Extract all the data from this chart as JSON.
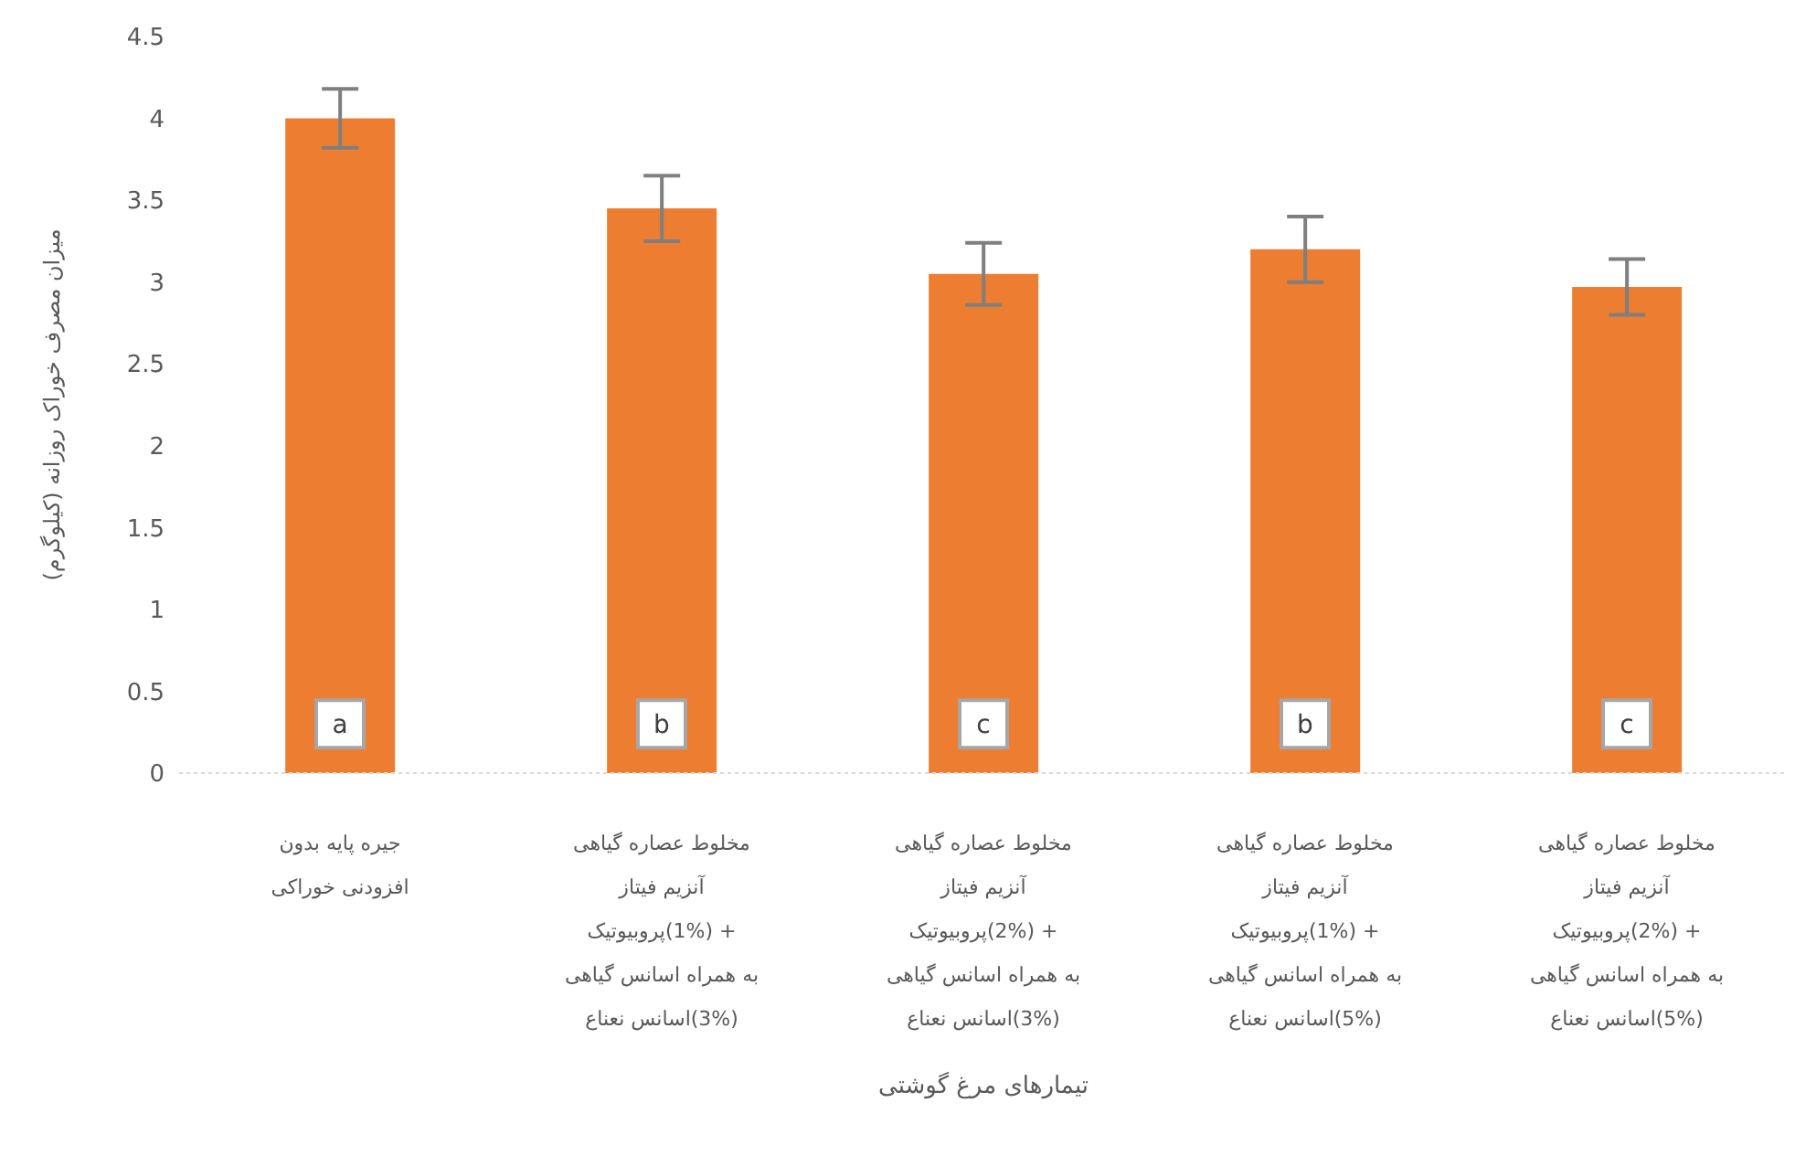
{
  "chart_data": {
    "type": "bar",
    "ylabel": "میزان مصرف خوراک روزانه (کیلوگرم)",
    "xlabel": "تیمارهای مرغ گوشتی",
    "categories": [
      "جیره پایه بدون\nافزودنی خوراکی",
      "مخلوط عصاره گیاهی\nآنزیم فیتاز\n+ (1%)پروبیوتیک\nبه همراه اسانس گیاهی\n(3%)اسانس نعناع",
      "مخلوط عصاره گیاهی\nآنزیم فیتاز\n+ (2%)پروبیوتیک\nبه همراه اسانس گیاهی\n(3%)اسانس نعناع",
      "مخلوط عصاره گیاهی\nآنزیم فیتاز\n+ (1%)پروبیوتیک\nبه همراه اسانس گیاهی\n(5%)اسانس نعناع",
      "مخلوط عصاره گیاهی\nآنزیم فیتاز\n+ (2%)پروبیوتیک\nبه همراه اسانس گیاهی\n(5%)اسانس نعناع"
    ],
    "values": [
      4.0,
      3.45,
      3.05,
      3.2,
      2.97
    ],
    "errors": [
      0.18,
      0.2,
      0.19,
      0.2,
      0.17
    ],
    "color": "#ed7d31",
    "ylim": [
      0,
      4.5
    ],
    "yticks": [
      0,
      0.5,
      1,
      1.5,
      2,
      2.5,
      3,
      3.5,
      4,
      4.5
    ],
    "grid": false,
    "legend": false,
    "annotations": [
      {
        "text": "a",
        "x": "جیره پایه بدون\nافزودنی خوراکی",
        "y": 0.3
      },
      {
        "text": "b",
        "x": "مخلوط عصاره گیاهی\nآنزیم فیتاز\n+ (1%)پروبیوتیک\nبه همراه اسانس گیاهی\n(3%)اسانس نعناع",
        "y": 0.3
      },
      {
        "text": "c",
        "x": "مخلوط عصاره گیاهی\nآنزیم فیتاز\n+ (2%)پروبیوتیک\nبه همراه اسانس گیاهی\n(3%)اسانس نعناع",
        "y": 0.3
      },
      {
        "text": "b",
        "x": "مخلوط عصاره گیاهی\nآنزیم فیتاز\n+ (1%)پروبیوتیک\nبه همراه اسانس گیاهی\n(5%)اسانس نعناع",
        "y": 0.3
      },
      {
        "text": "c",
        "x": "مخلوط عصاره گیاهی\nآنزیم فیتاز\n+ (2%)پروبیوتیک\nبه همراه اسانس گیاهی\n(5%)اسانس نعناع",
        "y": 0.3
      }
    ]
  }
}
